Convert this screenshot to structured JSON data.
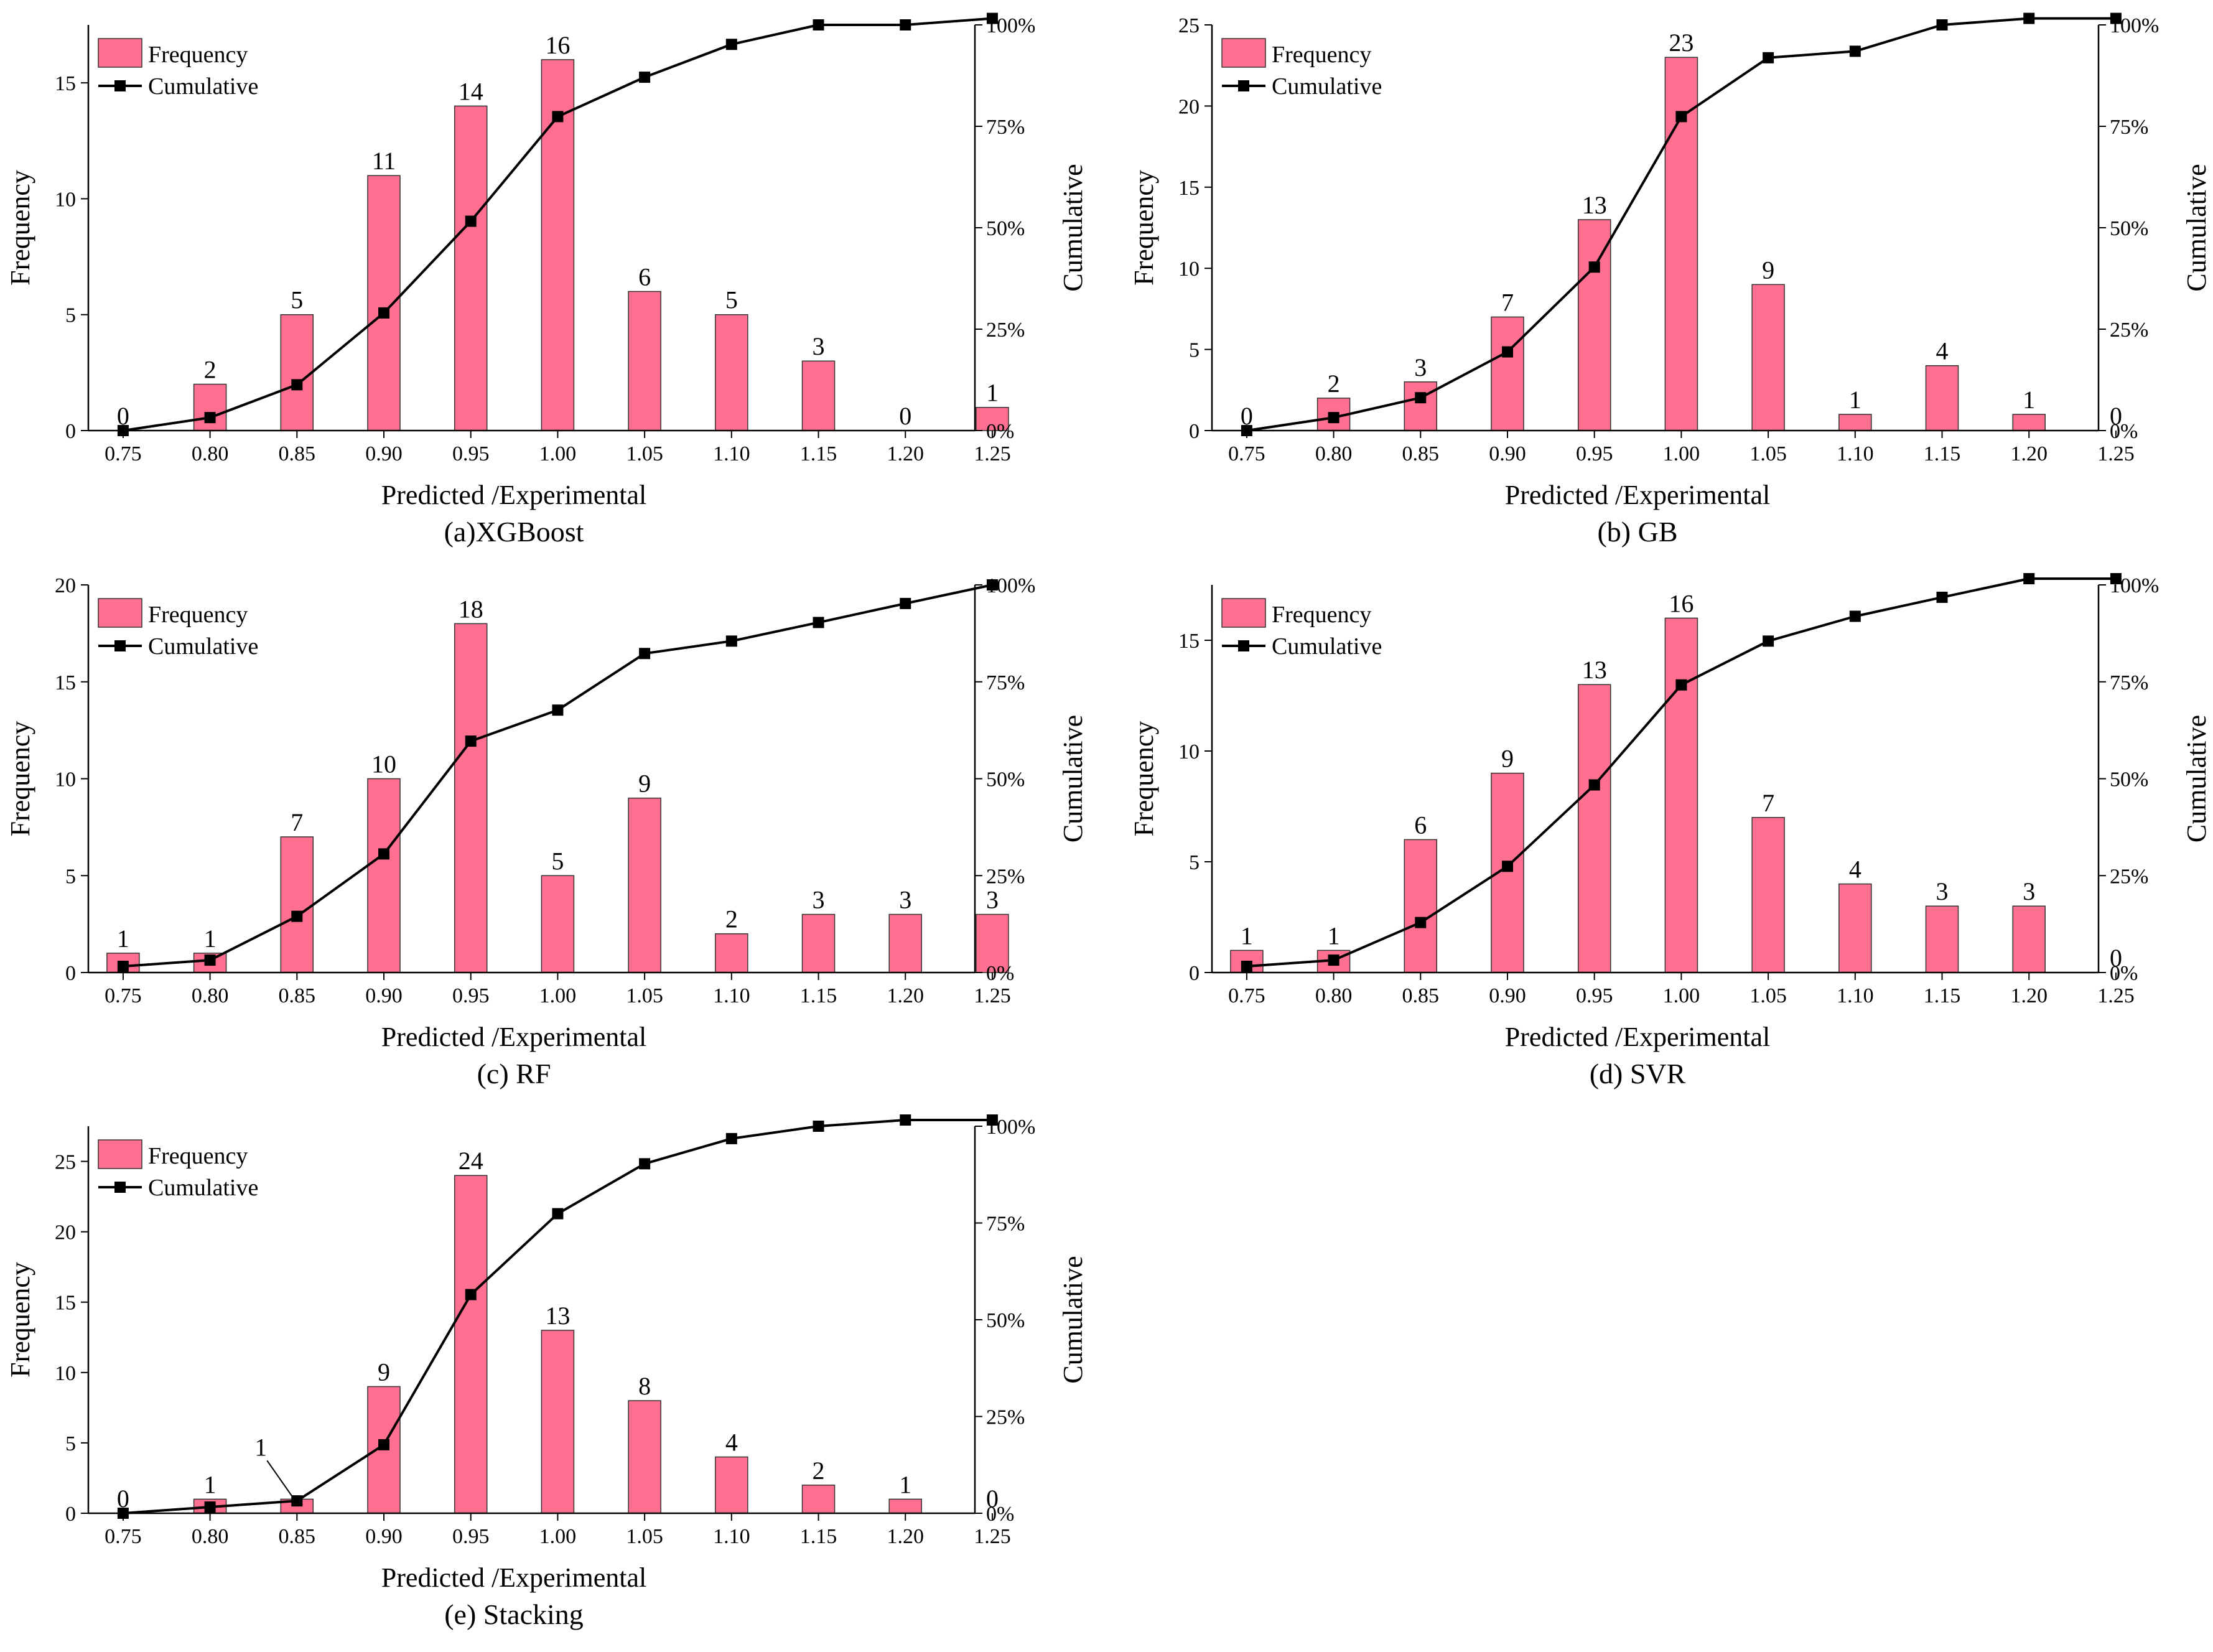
{
  "colors": {
    "bar": "#ff7090",
    "bar_edge": "#333333",
    "line": "#000000",
    "marker": "#000000",
    "axis": "#000000"
  },
  "chart_data": [
    {
      "type": "bar",
      "caption": "(a)XGBoost",
      "xlabel": "Predicted /Experimental",
      "ylabel": "Frequency",
      "y2label": "Cumulative",
      "legend": {
        "frequency": "Frequency",
        "cumulative": "Cumulative",
        "position": "top-left"
      },
      "categories": [
        "0.75",
        "0.80",
        "0.85",
        "0.90",
        "0.95",
        "1.00",
        "1.05",
        "1.10",
        "1.15",
        "1.20",
        "1.25"
      ],
      "values": [
        0,
        2,
        5,
        11,
        14,
        16,
        6,
        5,
        3,
        0,
        1
      ],
      "value_labels": [
        "0",
        "2",
        "5",
        "11",
        "14",
        "16",
        "6",
        "5",
        "3",
        "0",
        "1"
      ],
      "cumulative": [
        0,
        3.2,
        11.3,
        29.0,
        51.6,
        77.4,
        87.1,
        95.2,
        100,
        100,
        101.6
      ],
      "ylim": [
        0,
        17.5
      ],
      "yticks": [
        0,
        5,
        10,
        15
      ],
      "y2lim": [
        0,
        100
      ],
      "y2ticks": [
        "0%",
        "25%",
        "50%",
        "75%",
        "100%"
      ]
    },
    {
      "type": "bar",
      "caption": "(b) GB",
      "xlabel": "Predicted /Experimental",
      "ylabel": "Frequency",
      "y2label": "Cumulative",
      "legend": {
        "frequency": "Frequency",
        "cumulative": "Cumulative",
        "position": "top-left"
      },
      "categories": [
        "0.75",
        "0.80",
        "0.85",
        "0.90",
        "0.95",
        "1.00",
        "1.05",
        "1.10",
        "1.15",
        "1.20",
        "1.25"
      ],
      "values": [
        0,
        2,
        3,
        7,
        13,
        23,
        9,
        1,
        4,
        1,
        0
      ],
      "value_labels": [
        "0",
        "2",
        "3",
        "7",
        "13",
        "23",
        "9",
        "1",
        "4",
        "1",
        "0"
      ],
      "cumulative": [
        0,
        3.2,
        8.1,
        19.4,
        40.3,
        77.4,
        91.9,
        93.5,
        100,
        101.6,
        101.6
      ],
      "ylim": [
        0,
        25
      ],
      "yticks": [
        0,
        5,
        10,
        15,
        20,
        25
      ],
      "y2lim": [
        0,
        100
      ],
      "y2ticks": [
        "0%",
        "25%",
        "50%",
        "75%",
        "100%"
      ]
    },
    {
      "type": "bar",
      "caption": "(c) RF",
      "xlabel": "Predicted /Experimental",
      "ylabel": "Frequency",
      "y2label": "Cumulative",
      "legend": {
        "frequency": "Frequency",
        "cumulative": "Cumulative",
        "position": "top-left"
      },
      "categories": [
        "0.75",
        "0.80",
        "0.85",
        "0.90",
        "0.95",
        "1.00",
        "1.05",
        "1.10",
        "1.15",
        "1.20",
        "1.25"
      ],
      "values": [
        1,
        1,
        7,
        10,
        18,
        5,
        9,
        2,
        3,
        3,
        3
      ],
      "value_labels": [
        "1",
        "1",
        "7",
        "10",
        "18",
        "5",
        "9",
        "2",
        "3",
        "3",
        "3"
      ],
      "cumulative": [
        1.6,
        3.2,
        14.5,
        30.6,
        59.7,
        67.7,
        82.3,
        85.5,
        90.3,
        95.2,
        100
      ],
      "ylim": [
        0,
        20
      ],
      "yticks": [
        0,
        5,
        10,
        15,
        20
      ],
      "y2lim": [
        0,
        100
      ],
      "y2ticks": [
        "0%",
        "25%",
        "50%",
        "75%",
        "100%"
      ]
    },
    {
      "type": "bar",
      "caption": "(d) SVR",
      "xlabel": "Predicted /Experimental",
      "ylabel": "Frequency",
      "y2label": "Cumulative",
      "legend": {
        "frequency": "Frequency",
        "cumulative": "Cumulative",
        "position": "top-left"
      },
      "categories": [
        "0.75",
        "0.80",
        "0.85",
        "0.90",
        "0.95",
        "1.00",
        "1.05",
        "1.10",
        "1.15",
        "1.20",
        "1.25"
      ],
      "values": [
        1,
        1,
        6,
        9,
        13,
        16,
        7,
        4,
        3,
        3,
        0
      ],
      "value_labels": [
        "1",
        "1",
        "6",
        "9",
        "13",
        "16",
        "7",
        "4",
        "3",
        "3",
        "0"
      ],
      "cumulative": [
        1.6,
        3.2,
        12.9,
        27.4,
        48.4,
        74.2,
        85.5,
        91.9,
        96.8,
        101.6,
        101.6
      ],
      "ylim": [
        0,
        17.5
      ],
      "yticks": [
        0,
        5,
        10,
        15
      ],
      "y2lim": [
        0,
        100
      ],
      "y2ticks": [
        "0%",
        "25%",
        "50%",
        "75%",
        "100%"
      ]
    },
    {
      "type": "bar",
      "caption": "(e) Stacking",
      "xlabel": "Predicted /Experimental",
      "ylabel": "Frequency",
      "y2label": "Cumulative",
      "legend": {
        "frequency": "Frequency",
        "cumulative": "Cumulative",
        "position": "top-left"
      },
      "categories": [
        "0.75",
        "0.80",
        "0.85",
        "0.90",
        "0.95",
        "1.00",
        "1.05",
        "1.10",
        "1.15",
        "1.20",
        "1.25"
      ],
      "values": [
        0,
        1,
        1,
        9,
        24,
        13,
        8,
        4,
        2,
        1,
        0
      ],
      "value_labels": [
        "0",
        "1",
        "1",
        "9",
        "24",
        "13",
        "8",
        "4",
        "2",
        "1",
        "0"
      ],
      "annotation": {
        "category_index": 2,
        "text": "1",
        "leader_line": true
      },
      "cumulative": [
        0,
        1.6,
        3.2,
        17.7,
        56.5,
        77.4,
        90.3,
        96.8,
        100,
        101.6,
        101.6
      ],
      "ylim": [
        0,
        27.5
      ],
      "yticks": [
        0,
        5,
        10,
        15,
        20,
        25
      ],
      "y2lim": [
        0,
        100
      ],
      "y2ticks": [
        "0%",
        "25%",
        "50%",
        "75%",
        "100%"
      ]
    }
  ]
}
